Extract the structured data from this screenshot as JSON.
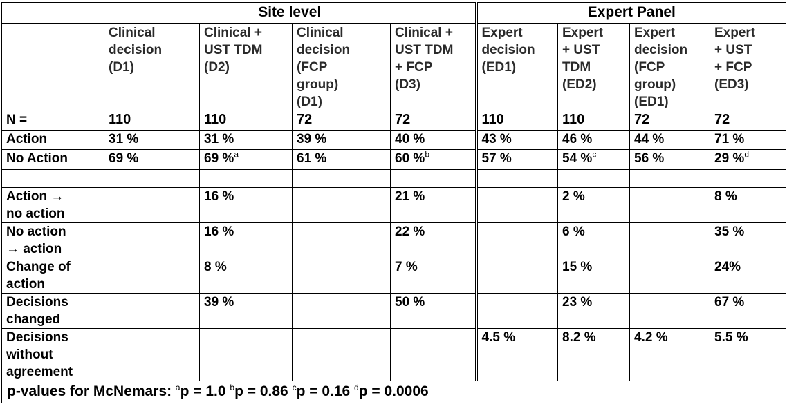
{
  "groups": {
    "site": "Site level",
    "expert": "Expert Panel"
  },
  "columns": [
    "Clinical\ndecision\n(D1)",
    "Clinical +\nUST TDM\n(D2)",
    "Clinical\ndecision\n(FCP\ngroup)\n(D1)",
    "Clinical +\nUST TDM\n+ FCP\n(D3)",
    "Expert\ndecision\n(ED1)",
    "Expert\n+ UST\nTDM\n(ED2)",
    "Expert\ndecision\n(FCP\ngroup)\n(ED1)",
    "Expert\n+ UST\n+ FCP\n(ED3)"
  ],
  "rows": {
    "n": {
      "label": "N =",
      "cells": [
        "110",
        "110",
        "72",
        "72",
        "110",
        "110",
        "72",
        "72"
      ]
    },
    "action": {
      "label": "Action",
      "cells": [
        "31 %",
        "31 %",
        "39 %",
        "40 %",
        "43 %",
        "46 %",
        "44 %",
        "71 %"
      ]
    },
    "no_action": {
      "label": "No Action",
      "cells": [
        "69 %",
        "69 %",
        "61 %",
        "60 %",
        "57 %",
        "54 %",
        "56 %",
        "29 %"
      ],
      "sup": [
        "",
        "a",
        "",
        "b",
        "",
        "c",
        "",
        "d"
      ]
    },
    "blank": {
      "label": ""
    },
    "a_to_na": {
      "label": "Action →\nno action",
      "cells": [
        "",
        "16 %",
        "",
        "21 %",
        "",
        "2 %",
        "",
        "8 %"
      ]
    },
    "na_to_a": {
      "label": "No action\n→ action",
      "cells": [
        "",
        "16 %",
        "",
        "22 %",
        "",
        "6 %",
        "",
        "35 %"
      ]
    },
    "change": {
      "label": "Change of\naction",
      "cells": [
        "",
        "8 %",
        "",
        "7 %",
        "",
        "15 %",
        "",
        "24%"
      ]
    },
    "changed": {
      "label": "Decisions\nchanged",
      "cells": [
        "",
        "39 %",
        "",
        "50 %",
        "",
        "23 %",
        "",
        "67 %"
      ]
    },
    "disagree": {
      "label": "Decisions\nwithout\nagreement",
      "cells": [
        "",
        "",
        "",
        "",
        "4.5 %",
        "8.2 %",
        "4.2 %",
        "5.5 %"
      ]
    }
  },
  "footnote": {
    "prefix": "p-values for McNemars: ",
    "a": "a",
    "a_val": "p = 1.0 ",
    "b": "b",
    "b_val": "p = 0.86 ",
    "c": "c",
    "c_val": "p = 0.16 ",
    "d": "d",
    "d_val": "p = 0.0006"
  }
}
